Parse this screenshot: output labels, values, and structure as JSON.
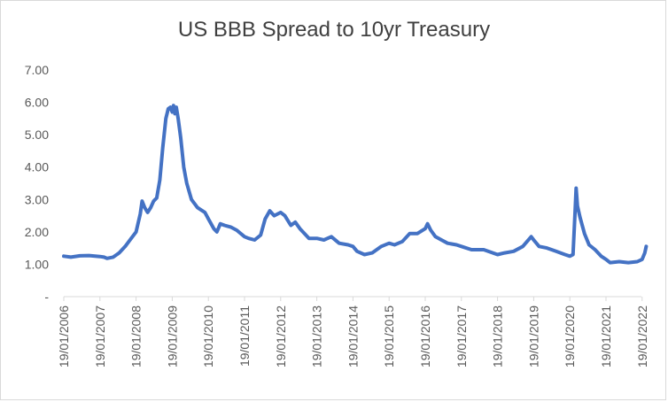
{
  "chart_data": {
    "type": "line",
    "title": "US BBB Spread to 10yr Treasury",
    "xlabel": "",
    "ylabel": "",
    "ylim": [
      0,
      7
    ],
    "y_tick_labels": [
      "-",
      "1.00",
      "2.00",
      "3.00",
      "4.00",
      "5.00",
      "6.00",
      "7.00"
    ],
    "x_tick_labels": [
      "19/01/2006",
      "19/01/2007",
      "19/01/2008",
      "19/01/2009",
      "19/01/2010",
      "19/01/2011",
      "19/01/2012",
      "19/01/2013",
      "19/01/2014",
      "19/01/2015",
      "19/01/2016",
      "19/01/2017",
      "19/01/2018",
      "19/01/2019",
      "19/01/2020",
      "19/01/2021",
      "19/01/2022"
    ],
    "x_range": [
      "2006-01-19",
      "2022-03-01"
    ],
    "grid": false,
    "series": [
      {
        "color": "#4472c4",
        "points": [
          [
            "2006-01-19",
            1.25
          ],
          [
            "2006-04-01",
            1.22
          ],
          [
            "2006-07-01",
            1.26
          ],
          [
            "2006-10-01",
            1.27
          ],
          [
            "2007-01-19",
            1.24
          ],
          [
            "2007-03-01",
            1.22
          ],
          [
            "2007-04-01",
            1.18
          ],
          [
            "2007-06-01",
            1.22
          ],
          [
            "2007-08-01",
            1.35
          ],
          [
            "2007-10-01",
            1.55
          ],
          [
            "2007-12-01",
            1.8
          ],
          [
            "2008-01-19",
            2.0
          ],
          [
            "2008-03-01",
            2.55
          ],
          [
            "2008-03-20",
            2.95
          ],
          [
            "2008-04-15",
            2.75
          ],
          [
            "2008-05-15",
            2.6
          ],
          [
            "2008-06-15",
            2.75
          ],
          [
            "2008-07-15",
            2.95
          ],
          [
            "2008-08-15",
            3.05
          ],
          [
            "2008-09-15",
            3.6
          ],
          [
            "2008-10-15",
            4.6
          ],
          [
            "2008-11-15",
            5.5
          ],
          [
            "2008-12-10",
            5.8
          ],
          [
            "2009-01-01",
            5.85
          ],
          [
            "2009-01-19",
            5.7
          ],
          [
            "2009-02-01",
            5.9
          ],
          [
            "2009-02-15",
            5.65
          ],
          [
            "2009-03-01",
            5.85
          ],
          [
            "2009-03-20",
            5.5
          ],
          [
            "2009-04-15",
            4.9
          ],
          [
            "2009-05-15",
            4.0
          ],
          [
            "2009-06-15",
            3.5
          ],
          [
            "2009-08-01",
            3.0
          ],
          [
            "2009-10-01",
            2.75
          ],
          [
            "2009-12-15",
            2.6
          ],
          [
            "2010-01-19",
            2.4
          ],
          [
            "2010-03-15",
            2.1
          ],
          [
            "2010-04-15",
            2.0
          ],
          [
            "2010-05-20",
            2.25
          ],
          [
            "2010-07-01",
            2.2
          ],
          [
            "2010-09-01",
            2.15
          ],
          [
            "2010-11-01",
            2.05
          ],
          [
            "2011-01-19",
            1.85
          ],
          [
            "2011-03-01",
            1.8
          ],
          [
            "2011-05-01",
            1.75
          ],
          [
            "2011-07-01",
            1.9
          ],
          [
            "2011-08-15",
            2.4
          ],
          [
            "2011-10-01",
            2.65
          ],
          [
            "2011-11-15",
            2.5
          ],
          [
            "2012-01-19",
            2.6
          ],
          [
            "2012-03-01",
            2.5
          ],
          [
            "2012-05-01",
            2.2
          ],
          [
            "2012-06-15",
            2.3
          ],
          [
            "2012-08-01",
            2.1
          ],
          [
            "2012-11-01",
            1.8
          ],
          [
            "2013-01-19",
            1.8
          ],
          [
            "2013-04-01",
            1.75
          ],
          [
            "2013-06-15",
            1.85
          ],
          [
            "2013-09-01",
            1.65
          ],
          [
            "2013-12-01",
            1.6
          ],
          [
            "2014-01-19",
            1.55
          ],
          [
            "2014-03-01",
            1.4
          ],
          [
            "2014-05-15",
            1.3
          ],
          [
            "2014-08-01",
            1.35
          ],
          [
            "2014-11-01",
            1.55
          ],
          [
            "2015-01-19",
            1.65
          ],
          [
            "2015-03-15",
            1.6
          ],
          [
            "2015-06-01",
            1.7
          ],
          [
            "2015-08-15",
            1.95
          ],
          [
            "2015-11-01",
            1.95
          ],
          [
            "2016-01-19",
            2.1
          ],
          [
            "2016-02-11",
            2.25
          ],
          [
            "2016-03-15",
            2.05
          ],
          [
            "2016-05-01",
            1.85
          ],
          [
            "2016-07-01",
            1.75
          ],
          [
            "2016-09-01",
            1.65
          ],
          [
            "2016-12-01",
            1.6
          ],
          [
            "2017-01-19",
            1.55
          ],
          [
            "2017-05-01",
            1.45
          ],
          [
            "2017-09-01",
            1.45
          ],
          [
            "2018-01-19",
            1.3
          ],
          [
            "2018-04-01",
            1.35
          ],
          [
            "2018-07-01",
            1.4
          ],
          [
            "2018-10-01",
            1.55
          ],
          [
            "2018-12-25",
            1.85
          ],
          [
            "2019-01-19",
            1.75
          ],
          [
            "2019-03-15",
            1.55
          ],
          [
            "2019-06-01",
            1.5
          ],
          [
            "2019-09-01",
            1.4
          ],
          [
            "2019-12-01",
            1.3
          ],
          [
            "2020-01-19",
            1.25
          ],
          [
            "2020-02-20",
            1.3
          ],
          [
            "2020-03-10",
            2.5
          ],
          [
            "2020-03-23",
            3.35
          ],
          [
            "2020-04-05",
            2.8
          ],
          [
            "2020-05-01",
            2.45
          ],
          [
            "2020-06-15",
            1.95
          ],
          [
            "2020-08-01",
            1.6
          ],
          [
            "2020-10-01",
            1.45
          ],
          [
            "2020-12-01",
            1.25
          ],
          [
            "2021-01-19",
            1.15
          ],
          [
            "2021-03-01",
            1.05
          ],
          [
            "2021-06-01",
            1.08
          ],
          [
            "2021-09-01",
            1.05
          ],
          [
            "2021-12-01",
            1.08
          ],
          [
            "2022-01-19",
            1.15
          ],
          [
            "2022-02-15",
            1.35
          ],
          [
            "2022-03-01",
            1.55
          ]
        ]
      }
    ]
  }
}
